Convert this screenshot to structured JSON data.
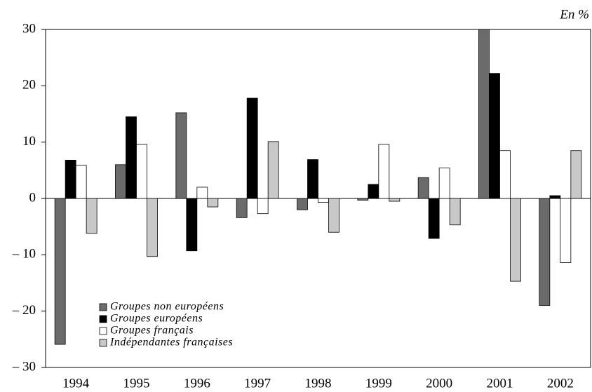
{
  "chart_data": {
    "type": "bar",
    "unit_label": "En %",
    "categories": [
      "1994",
      "1995",
      "1996",
      "1997",
      "1998",
      "1999",
      "2000",
      "2001",
      "2002"
    ],
    "series": [
      {
        "name": "Groupes non européens",
        "color": "#6b6b6b",
        "values": [
          -25.9,
          6.0,
          15.2,
          -3.4,
          -2.0,
          -0.3,
          3.7,
          30,
          -19.0
        ]
      },
      {
        "name": "Groupes européens",
        "color": "#000000",
        "values": [
          6.8,
          14.5,
          -9.3,
          17.8,
          6.9,
          2.5,
          -7.1,
          22.2,
          0.5
        ]
      },
      {
        "name": "Groupes français",
        "color": "#ffffff",
        "values": [
          5.9,
          9.6,
          2.0,
          -2.7,
          -0.7,
          9.6,
          5.4,
          8.5,
          -11.4
        ]
      },
      {
        "name": "Indépendantes françaises",
        "color": "#c8c8c8",
        "values": [
          -6.2,
          -10.3,
          -1.5,
          10.1,
          -6.0,
          -0.5,
          -4.7,
          -14.7,
          8.5
        ]
      }
    ],
    "ylim": [
      -30,
      30
    ],
    "yticks": [
      {
        "value": -30,
        "label": "– 30"
      },
      {
        "value": -20,
        "label": "– 20"
      },
      {
        "value": -10,
        "label": "– 10"
      },
      0,
      10,
      20,
      30
    ],
    "legend": "lower left"
  }
}
